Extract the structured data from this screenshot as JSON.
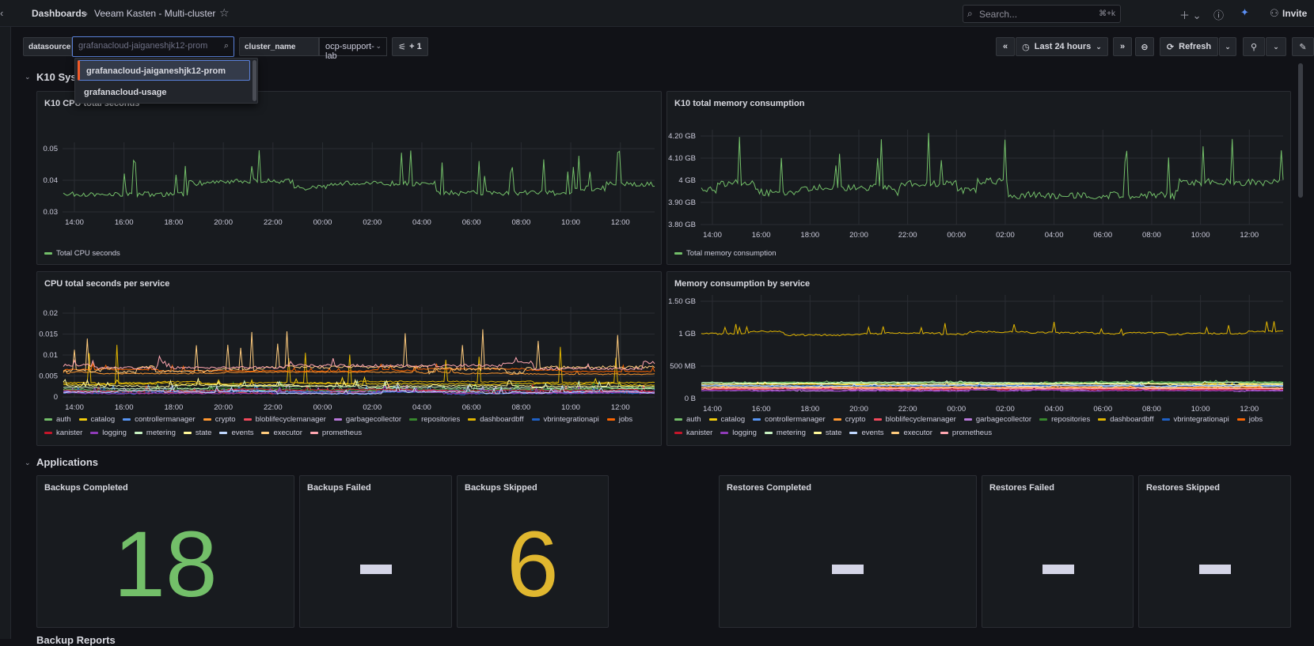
{
  "nav": {
    "breadcrumb_root": "Dashboards",
    "breadcrumb_sep": "›",
    "breadcrumb_current": "Veeam Kasten - Multi-cluster",
    "search_placeholder": "Search...",
    "search_shortcut": "⌘+k",
    "invite_label": "Invite"
  },
  "variables": {
    "datasource_label": "datasource",
    "datasource_value": "grafanacloud-jaiganeshjk12-prom",
    "cluster_label": "cluster_name",
    "cluster_value": "ocp-support-lab",
    "filters_badge": "+ 1",
    "datasource_options": [
      "grafanacloud-jaiganeshjk12-prom",
      "grafanacloud-usage"
    ]
  },
  "time_controls": {
    "range_label": "Last 24 hours",
    "refresh_label": "Refresh"
  },
  "rows": {
    "k10_system": "K10 System",
    "applications": "Applications",
    "next_row_partial": "Backup Reports"
  },
  "panels": {
    "cpu_total": {
      "title": "K10 CPU total seconds",
      "legend": "Total CPU seconds",
      "color": "#73bf69",
      "yticks": [
        "0.05",
        "0.04",
        "0.03"
      ]
    },
    "memory_total": {
      "title": "K10 total memory consumption",
      "legend": "Total memory consumption",
      "color": "#73bf69",
      "yticks": [
        "4.20 GB",
        "4.10 GB",
        "4 GB",
        "3.90 GB",
        "3.80 GB"
      ]
    },
    "cpu_per_service": {
      "title": "CPU total seconds per service",
      "yticks": [
        "0.02",
        "0.015",
        "0.01",
        "0.005",
        "0"
      ]
    },
    "memory_per_service": {
      "title": "Memory consumption by service",
      "yticks": [
        "1.50 GB",
        "1 GB",
        "500 MB",
        "0 B"
      ]
    },
    "xticks": [
      "14:00",
      "16:00",
      "18:00",
      "20:00",
      "22:00",
      "00:00",
      "02:00",
      "04:00",
      "06:00",
      "08:00",
      "10:00",
      "12:00"
    ],
    "services": [
      {
        "name": "auth",
        "color": "#73bf69"
      },
      {
        "name": "catalog",
        "color": "#f2cc0c"
      },
      {
        "name": "controllermanager",
        "color": "#5794f2"
      },
      {
        "name": "crypto",
        "color": "#ff9830"
      },
      {
        "name": "bloblifecyclemanager",
        "color": "#f2495c"
      },
      {
        "name": "garbagecollector",
        "color": "#b877d9"
      },
      {
        "name": "repositories",
        "color": "#37872d"
      },
      {
        "name": "dashboardbff",
        "color": "#e0b400"
      },
      {
        "name": "vbrintegrationapi",
        "color": "#1f60c4"
      },
      {
        "name": "jobs",
        "color": "#fa6400"
      },
      {
        "name": "kanister",
        "color": "#c4162a"
      },
      {
        "name": "logging",
        "color": "#8f3bb8"
      },
      {
        "name": "metering",
        "color": "#c8f2c2"
      },
      {
        "name": "state",
        "color": "#fff899"
      },
      {
        "name": "events",
        "color": "#c0d8ff"
      },
      {
        "name": "executor",
        "color": "#ffcb7d"
      },
      {
        "name": "prometheus",
        "color": "#ffa6b0"
      }
    ]
  },
  "stats": {
    "backups_completed": {
      "title": "Backups Completed",
      "value": "18",
      "color": "#73bf69"
    },
    "backups_failed": {
      "title": "Backups Failed",
      "value": "-",
      "color": "#d4d5e6"
    },
    "backups_skipped": {
      "title": "Backups Skipped",
      "value": "6",
      "color": "#e0b72f"
    },
    "restores_completed": {
      "title": "Restores Completed",
      "value": "-",
      "color": "#d4d5e6"
    },
    "restores_failed": {
      "title": "Restores Failed",
      "value": "-",
      "color": "#d4d5e6"
    },
    "restores_skipped": {
      "title": "Restores Skipped",
      "value": "-",
      "color": "#d4d5e6"
    }
  }
}
